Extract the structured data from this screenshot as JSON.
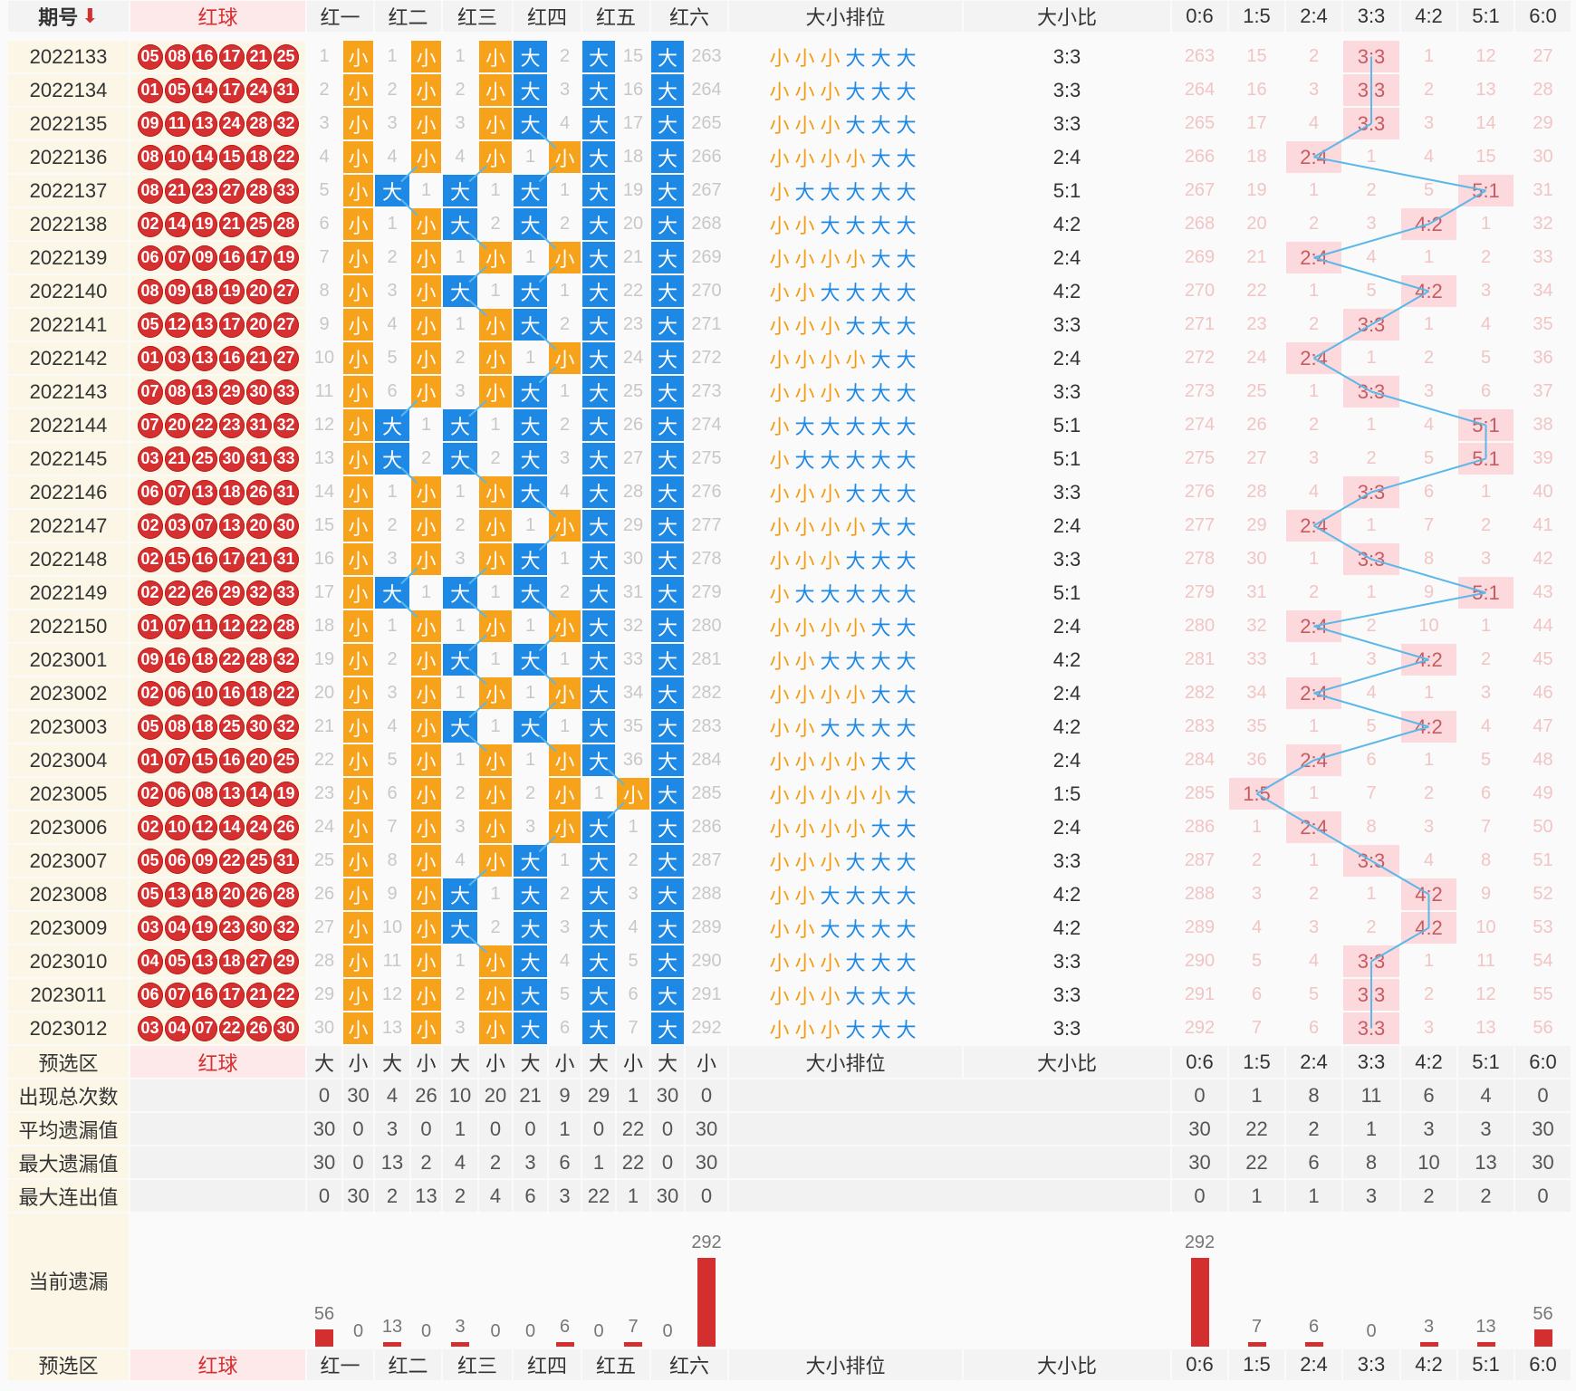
{
  "header": {
    "period_label": "期号",
    "sort_arrow": "⬇",
    "red_label": "红球",
    "positions": [
      "红一",
      "红二",
      "红三",
      "红四",
      "红五",
      "红六"
    ],
    "seq_label": "大小排位",
    "ratio_label": "大小比",
    "ratios": [
      "0:6",
      "1:5",
      "2:4",
      "3:3",
      "4:2",
      "5:1",
      "6:0"
    ]
  },
  "rows": [
    {
      "period": "2022133",
      "balls": [
        "05",
        "08",
        "16",
        "17",
        "21",
        "25"
      ],
      "seq": "小小小大大大",
      "ratio": "3:3"
    },
    {
      "period": "2022134",
      "balls": [
        "01",
        "05",
        "14",
        "17",
        "24",
        "31"
      ],
      "seq": "小小小大大大",
      "ratio": "3:3"
    },
    {
      "period": "2022135",
      "balls": [
        "09",
        "11",
        "13",
        "24",
        "28",
        "32"
      ],
      "seq": "小小小大大大",
      "ratio": "3:3"
    },
    {
      "period": "2022136",
      "balls": [
        "08",
        "10",
        "14",
        "15",
        "18",
        "22"
      ],
      "seq": "小小小小大大",
      "ratio": "2:4"
    },
    {
      "period": "2022137",
      "balls": [
        "08",
        "21",
        "23",
        "27",
        "28",
        "33"
      ],
      "seq": "小大大大大大",
      "ratio": "5:1"
    },
    {
      "period": "2022138",
      "balls": [
        "02",
        "14",
        "19",
        "21",
        "25",
        "28"
      ],
      "seq": "小小大大大大",
      "ratio": "4:2"
    },
    {
      "period": "2022139",
      "balls": [
        "06",
        "07",
        "09",
        "16",
        "17",
        "19"
      ],
      "seq": "小小小小大大",
      "ratio": "2:4"
    },
    {
      "period": "2022140",
      "balls": [
        "08",
        "09",
        "18",
        "19",
        "20",
        "27"
      ],
      "seq": "小小大大大大",
      "ratio": "4:2"
    },
    {
      "period": "2022141",
      "balls": [
        "05",
        "12",
        "13",
        "17",
        "20",
        "27"
      ],
      "seq": "小小小大大大",
      "ratio": "3:3"
    },
    {
      "period": "2022142",
      "balls": [
        "01",
        "03",
        "13",
        "16",
        "21",
        "27"
      ],
      "seq": "小小小小大大",
      "ratio": "2:4"
    },
    {
      "period": "2022143",
      "balls": [
        "07",
        "08",
        "13",
        "29",
        "30",
        "33"
      ],
      "seq": "小小小大大大",
      "ratio": "3:3"
    },
    {
      "period": "2022144",
      "balls": [
        "07",
        "20",
        "22",
        "23",
        "31",
        "32"
      ],
      "seq": "小大大大大大",
      "ratio": "5:1"
    },
    {
      "period": "2022145",
      "balls": [
        "03",
        "21",
        "25",
        "30",
        "31",
        "33"
      ],
      "seq": "小大大大大大",
      "ratio": "5:1"
    },
    {
      "period": "2022146",
      "balls": [
        "06",
        "07",
        "13",
        "18",
        "26",
        "31"
      ],
      "seq": "小小小大大大",
      "ratio": "3:3"
    },
    {
      "period": "2022147",
      "balls": [
        "02",
        "03",
        "07",
        "13",
        "20",
        "30"
      ],
      "seq": "小小小小大大",
      "ratio": "2:4"
    },
    {
      "period": "2022148",
      "balls": [
        "02",
        "15",
        "16",
        "17",
        "21",
        "31"
      ],
      "seq": "小小小大大大",
      "ratio": "3:3"
    },
    {
      "period": "2022149",
      "balls": [
        "02",
        "22",
        "26",
        "29",
        "32",
        "33"
      ],
      "seq": "小大大大大大",
      "ratio": "5:1"
    },
    {
      "period": "2022150",
      "balls": [
        "01",
        "07",
        "11",
        "12",
        "22",
        "28"
      ],
      "seq": "小小小小大大",
      "ratio": "2:4"
    },
    {
      "period": "2023001",
      "balls": [
        "09",
        "16",
        "18",
        "22",
        "28",
        "32"
      ],
      "seq": "小小大大大大",
      "ratio": "4:2"
    },
    {
      "period": "2023002",
      "balls": [
        "02",
        "06",
        "10",
        "16",
        "18",
        "22"
      ],
      "seq": "小小小小大大",
      "ratio": "2:4"
    },
    {
      "period": "2023003",
      "balls": [
        "05",
        "08",
        "18",
        "25",
        "30",
        "32"
      ],
      "seq": "小小大大大大",
      "ratio": "4:2"
    },
    {
      "period": "2023004",
      "balls": [
        "01",
        "07",
        "15",
        "16",
        "20",
        "25"
      ],
      "seq": "小小小小大大",
      "ratio": "2:4"
    },
    {
      "period": "2023005",
      "balls": [
        "02",
        "06",
        "08",
        "13",
        "14",
        "19"
      ],
      "seq": "小小小小小大",
      "ratio": "1:5"
    },
    {
      "period": "2023006",
      "balls": [
        "02",
        "10",
        "12",
        "14",
        "24",
        "26"
      ],
      "seq": "小小小小大大",
      "ratio": "2:4"
    },
    {
      "period": "2023007",
      "balls": [
        "05",
        "06",
        "09",
        "22",
        "25",
        "31"
      ],
      "seq": "小小小大大大",
      "ratio": "3:3"
    },
    {
      "period": "2023008",
      "balls": [
        "05",
        "13",
        "18",
        "20",
        "26",
        "28"
      ],
      "seq": "小小大大大大",
      "ratio": "4:2"
    },
    {
      "period": "2023009",
      "balls": [
        "03",
        "04",
        "19",
        "23",
        "30",
        "32"
      ],
      "seq": "小小大大大大",
      "ratio": "4:2"
    },
    {
      "period": "2023010",
      "balls": [
        "04",
        "05",
        "13",
        "18",
        "27",
        "29"
      ],
      "seq": "小小小大大大",
      "ratio": "3:3"
    },
    {
      "period": "2023011",
      "balls": [
        "06",
        "07",
        "16",
        "17",
        "21",
        "22"
      ],
      "seq": "小小小大大大",
      "ratio": "3:3"
    },
    {
      "period": "2023012",
      "balls": [
        "03",
        "04",
        "07",
        "22",
        "26",
        "30"
      ],
      "seq": "小小小大大大",
      "ratio": "3:3"
    }
  ],
  "big_small_labels": {
    "big": "大",
    "small": "小"
  },
  "presel": {
    "label": "预选区",
    "red": "红球"
  },
  "summary": {
    "rows": [
      {
        "label": "出现总次数",
        "pos": [
          "0",
          "30",
          "4",
          "26",
          "10",
          "20",
          "21",
          "9",
          "29",
          "1",
          "30",
          "0"
        ],
        "ratio": [
          "0",
          "1",
          "8",
          "11",
          "6",
          "4",
          "0"
        ]
      },
      {
        "label": "平均遗漏值",
        "pos": [
          "30",
          "0",
          "3",
          "0",
          "1",
          "0",
          "0",
          "1",
          "0",
          "22",
          "0",
          "30"
        ],
        "ratio": [
          "30",
          "22",
          "2",
          "1",
          "3",
          "3",
          "30"
        ]
      },
      {
        "label": "最大遗漏值",
        "pos": [
          "30",
          "0",
          "13",
          "2",
          "4",
          "2",
          "3",
          "6",
          "1",
          "22",
          "0",
          "30"
        ],
        "ratio": [
          "30",
          "22",
          "6",
          "8",
          "10",
          "13",
          "30"
        ]
      },
      {
        "label": "最大连出值",
        "pos": [
          "0",
          "30",
          "2",
          "13",
          "2",
          "4",
          "6",
          "3",
          "22",
          "1",
          "30",
          "0"
        ],
        "ratio": [
          "0",
          "1",
          "1",
          "3",
          "2",
          "2",
          "0"
        ]
      }
    ],
    "current_label": "当前遗漏",
    "current_pos": [
      56,
      0,
      13,
      0,
      3,
      0,
      0,
      6,
      0,
      7,
      0,
      292
    ],
    "current_ratio": [
      292,
      7,
      6,
      0,
      3,
      13,
      56
    ],
    "current_pos_labels": [
      "56",
      "0",
      "13",
      "0",
      "3",
      "0",
      "0",
      "6",
      "0",
      "7",
      "0",
      "292"
    ],
    "current_ratio_labels": [
      "292",
      "7",
      "6",
      "0",
      "3",
      "13",
      "56"
    ]
  },
  "colors": {
    "red": "#d32f2f",
    "small": "#f7a21b",
    "big": "#1e88e5",
    "line": "#5bb8e8"
  }
}
